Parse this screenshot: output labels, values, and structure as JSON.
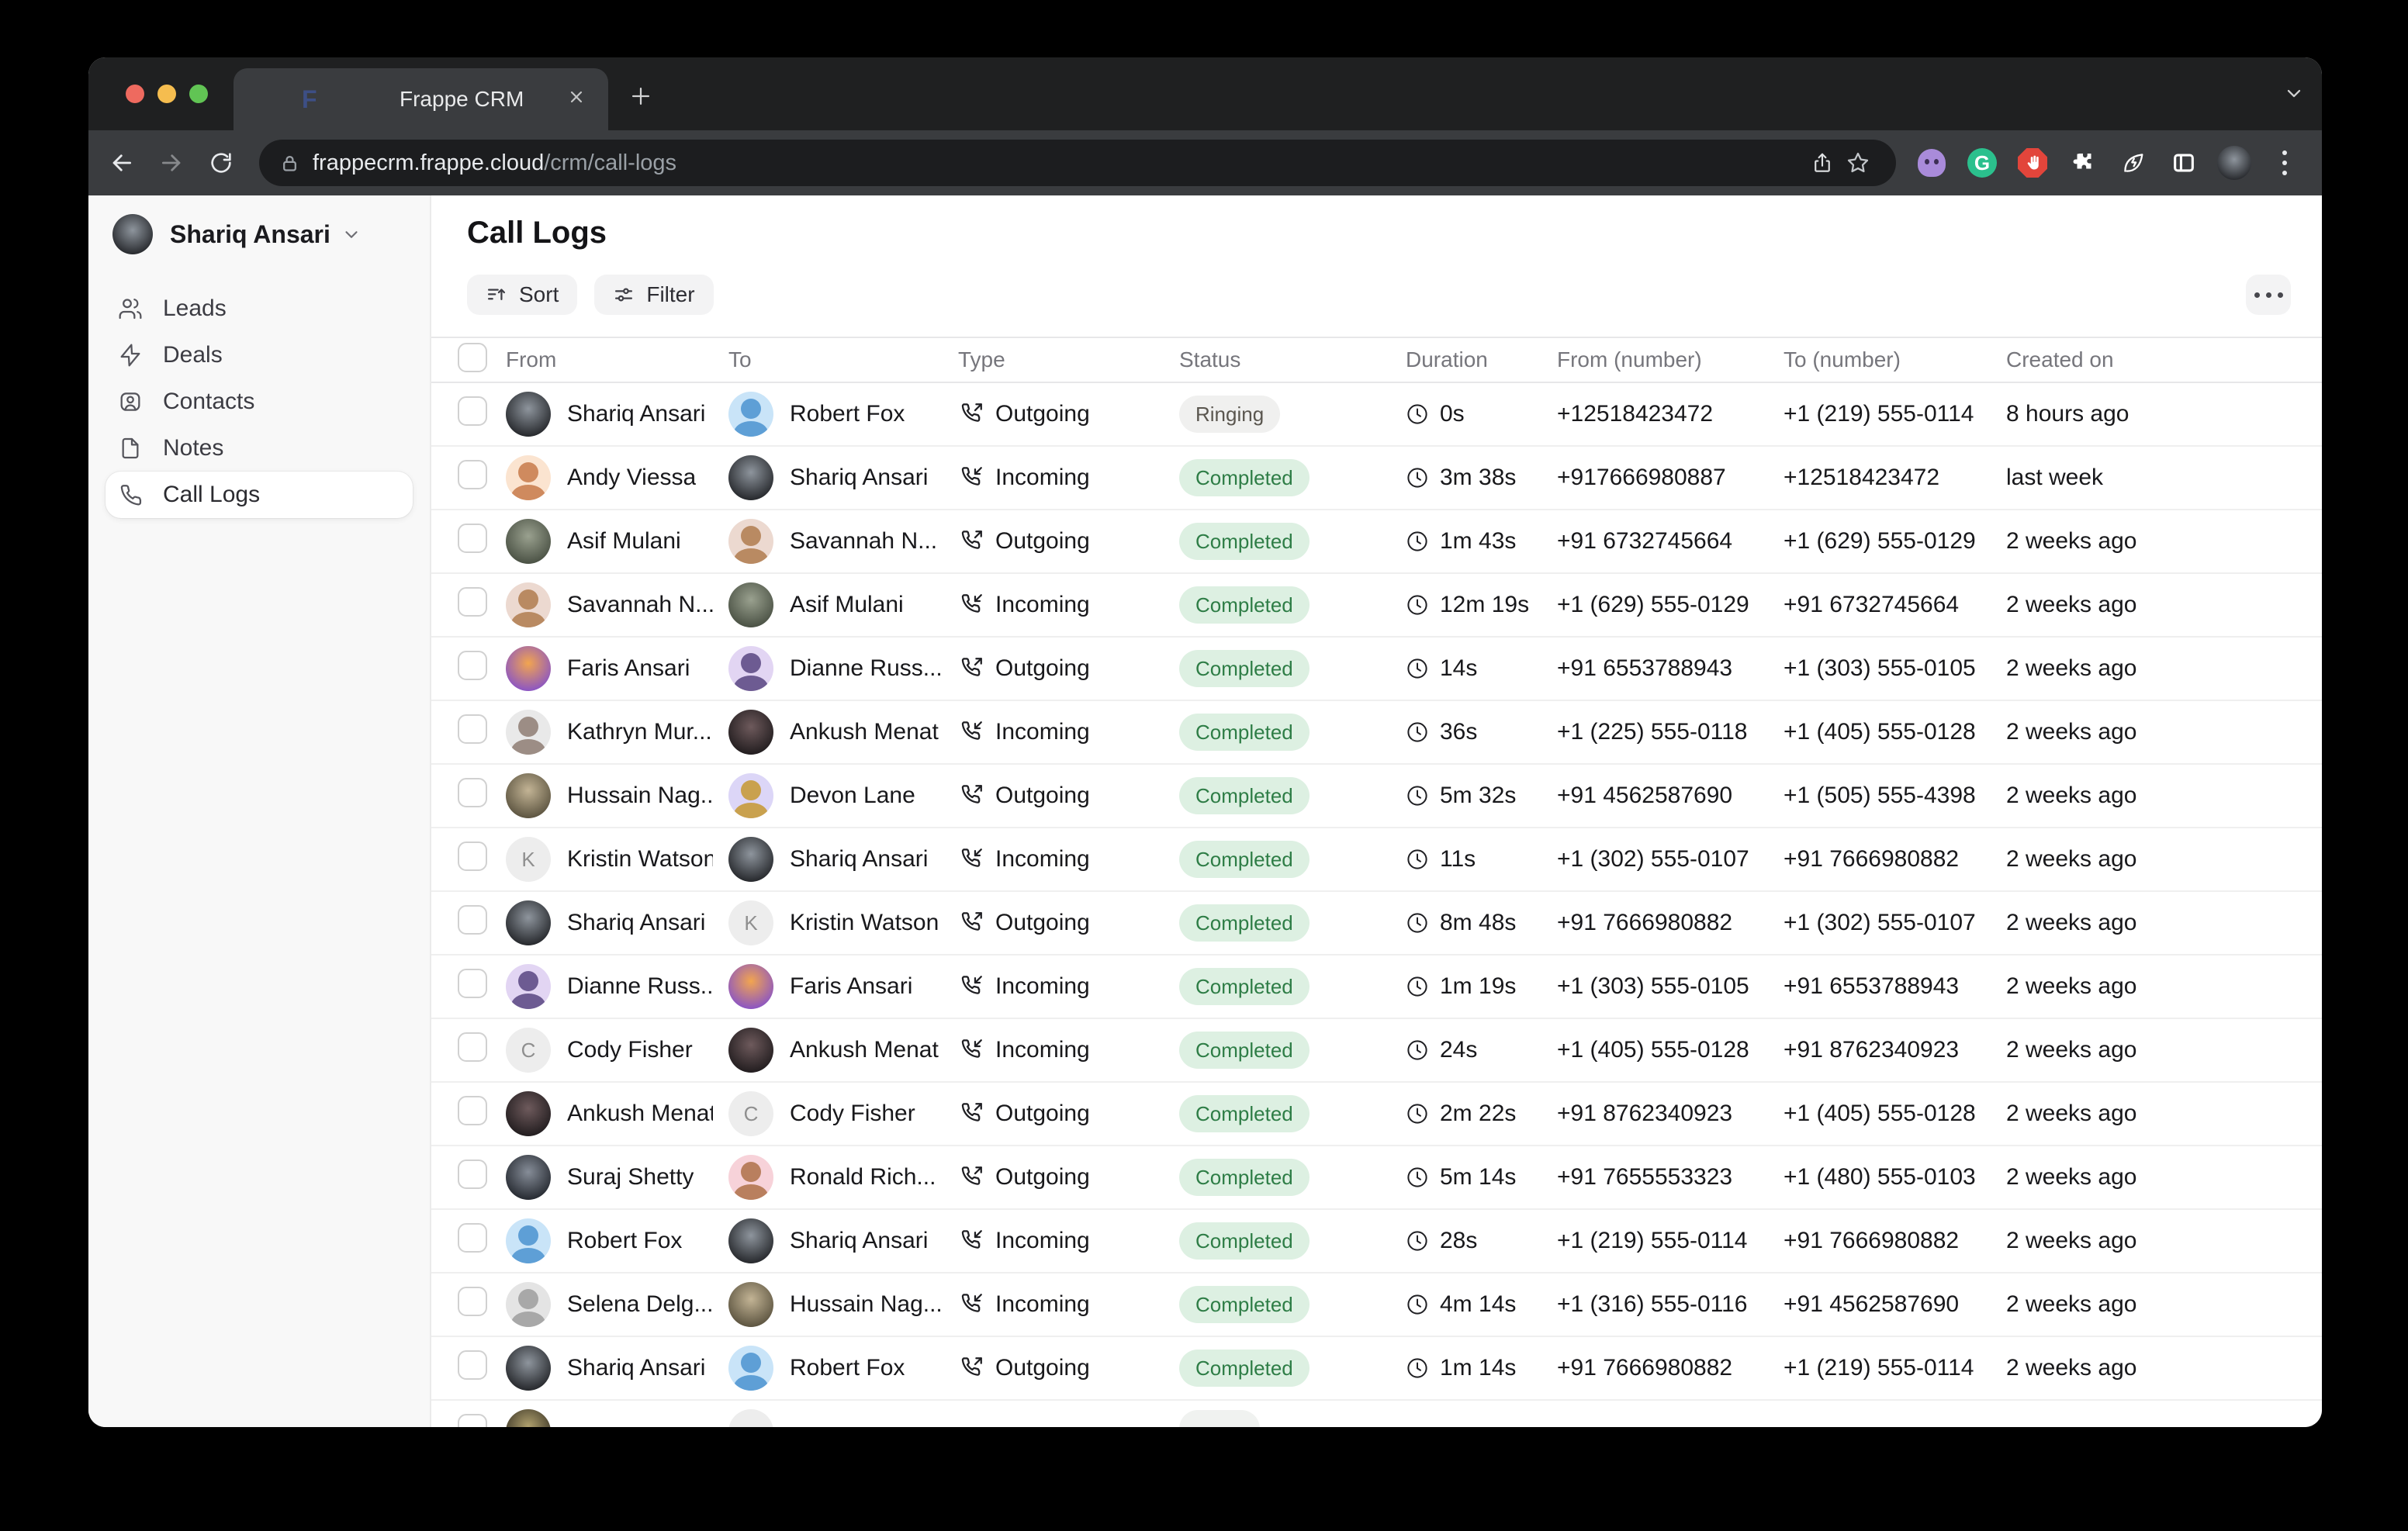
{
  "browser": {
    "traffic_lights": [
      "#ee6a5f",
      "#f5bd4f",
      "#61c454"
    ],
    "tab": {
      "title": "Frappe CRM",
      "favicon_letter": "F"
    },
    "address": {
      "host": "frappecrm.frappe.cloud",
      "path": "/crm/call-logs"
    },
    "extensions": [
      {
        "name": "github-extension",
        "kind": "octo"
      },
      {
        "name": "grammarly-extension",
        "kind": "g",
        "letter": "G"
      },
      {
        "name": "adblock-extension",
        "kind": "hand"
      },
      {
        "name": "extensions-puzzle",
        "kind": "puzzle"
      },
      {
        "name": "leaf-extension",
        "kind": "leaf"
      },
      {
        "name": "side-panel",
        "kind": "panel"
      },
      {
        "name": "profile-avatar",
        "kind": "avatar"
      },
      {
        "name": "browser-menu",
        "kind": "dots"
      }
    ]
  },
  "sidebar": {
    "user": {
      "name": "Shariq Ansari"
    },
    "items": [
      {
        "label": "Leads",
        "icon": "users",
        "active": false
      },
      {
        "label": "Deals",
        "icon": "zap",
        "active": false
      },
      {
        "label": "Contacts",
        "icon": "contact",
        "active": false
      },
      {
        "label": "Notes",
        "icon": "file",
        "active": false
      },
      {
        "label": "Call Logs",
        "icon": "phone",
        "active": true
      }
    ]
  },
  "page": {
    "title": "Call Logs",
    "sort_label": "Sort",
    "filter_label": "Filter"
  },
  "colors": {
    "completed_bg": "#ddf0e2",
    "completed_fg": "#2e7d46",
    "ringing_bg": "#f0f0ef",
    "ringing_fg": "#5a564f"
  },
  "table": {
    "columns": [
      "From",
      "To",
      "Type",
      "Status",
      "Duration",
      "From (number)",
      "To (number)",
      "Created on"
    ],
    "rows": [
      {
        "from": {
          "name": "Shariq Ansari",
          "avatar": {
            "kind": "photo",
            "c1": "#8e959d",
            "c2": "#26282c"
          }
        },
        "to": {
          "name": "Robert Fox",
          "avatar": {
            "kind": "memoji",
            "bg": "#c9e4f8",
            "tone": "#5e9fd6"
          }
        },
        "type": "Outgoing",
        "status": "Ringing",
        "status_kind": "ringing",
        "duration": "0s",
        "from_number": "+12518423472",
        "to_number": "+1 (219) 555-0114",
        "created": "8 hours ago"
      },
      {
        "from": {
          "name": "Andy Viessa",
          "avatar": {
            "kind": "memoji",
            "bg": "#fbe4d0",
            "tone": "#cf8a5e"
          }
        },
        "to": {
          "name": "Shariq Ansari",
          "avatar": {
            "kind": "photo",
            "c1": "#8e959d",
            "c2": "#26282c"
          }
        },
        "type": "Incoming",
        "status": "Completed",
        "status_kind": "completed",
        "duration": "3m 38s",
        "from_number": "+917666980887",
        "to_number": "+12518423472",
        "created": "last week"
      },
      {
        "from": {
          "name": "Asif Mulani",
          "avatar": {
            "kind": "photo",
            "c1": "#9aa18f",
            "c2": "#4a5144"
          }
        },
        "to": {
          "name": "Savannah N...",
          "avatar": {
            "kind": "memoji",
            "bg": "#ecd9d0",
            "tone": "#b98a62"
          }
        },
        "type": "Outgoing",
        "status": "Completed",
        "status_kind": "completed",
        "duration": "1m 43s",
        "from_number": "+91 6732745664",
        "to_number": "+1 (629) 555-0129",
        "created": "2 weeks ago"
      },
      {
        "from": {
          "name": "Savannah N...",
          "avatar": {
            "kind": "memoji",
            "bg": "#ecd9d0",
            "tone": "#b98a62"
          }
        },
        "to": {
          "name": "Asif Mulani",
          "avatar": {
            "kind": "photo",
            "c1": "#9aa18f",
            "c2": "#4a5144"
          }
        },
        "type": "Incoming",
        "status": "Completed",
        "status_kind": "completed",
        "duration": "12m 19s",
        "from_number": "+1 (629) 555-0129",
        "to_number": "+91 6732745664",
        "created": "2 weeks ago"
      },
      {
        "from": {
          "name": "Faris Ansari",
          "avatar": {
            "kind": "photo",
            "c1": "#f2a54f",
            "c2": "#8b55c4"
          }
        },
        "to": {
          "name": "Dianne Russ...",
          "avatar": {
            "kind": "memoji",
            "bg": "#e2d5f3",
            "tone": "#6d5b92"
          }
        },
        "type": "Outgoing",
        "status": "Completed",
        "status_kind": "completed",
        "duration": "14s",
        "from_number": "+91 6553788943",
        "to_number": "+1 (303) 555-0105",
        "created": "2 weeks ago"
      },
      {
        "from": {
          "name": "Kathryn Mur...",
          "avatar": {
            "kind": "memoji",
            "bg": "#e9e9e9",
            "tone": "#9c8d85"
          }
        },
        "to": {
          "name": "Ankush Menat",
          "avatar": {
            "kind": "photo",
            "c1": "#6e5a5c",
            "c2": "#221d1f"
          }
        },
        "type": "Incoming",
        "status": "Completed",
        "status_kind": "completed",
        "duration": "36s",
        "from_number": "+1 (225) 555-0118",
        "to_number": "+1 (405) 555-0128",
        "created": "2 weeks ago"
      },
      {
        "from": {
          "name": "Hussain Nag...",
          "avatar": {
            "kind": "photo",
            "c1": "#c3b495",
            "c2": "#5c5440"
          }
        },
        "to": {
          "name": "Devon Lane",
          "avatar": {
            "kind": "memoji",
            "bg": "#dcd6f7",
            "tone": "#c9a14e"
          }
        },
        "type": "Outgoing",
        "status": "Completed",
        "status_kind": "completed",
        "duration": "5m 32s",
        "from_number": "+91 4562587690",
        "to_number": "+1 (505) 555-4398",
        "created": "2 weeks ago"
      },
      {
        "from": {
          "name": "Kristin Watson",
          "avatar": {
            "kind": "letter",
            "bg": "#ededed",
            "fg": "#8f8f8f",
            "initial": "K"
          }
        },
        "to": {
          "name": "Shariq Ansari",
          "avatar": {
            "kind": "photo",
            "c1": "#8e959d",
            "c2": "#26282c"
          }
        },
        "type": "Incoming",
        "status": "Completed",
        "status_kind": "completed",
        "duration": "11s",
        "from_number": "+1 (302) 555-0107",
        "to_number": "+91 7666980882",
        "created": "2 weeks ago"
      },
      {
        "from": {
          "name": "Shariq Ansari",
          "avatar": {
            "kind": "photo",
            "c1": "#8e959d",
            "c2": "#26282c"
          }
        },
        "to": {
          "name": "Kristin Watson",
          "avatar": {
            "kind": "letter",
            "bg": "#ededed",
            "fg": "#8f8f8f",
            "initial": "K"
          }
        },
        "type": "Outgoing",
        "status": "Completed",
        "status_kind": "completed",
        "duration": "8m 48s",
        "from_number": "+91 7666980882",
        "to_number": "+1 (302) 555-0107",
        "created": "2 weeks ago"
      },
      {
        "from": {
          "name": "Dianne Russ...",
          "avatar": {
            "kind": "memoji",
            "bg": "#e2d5f3",
            "tone": "#6d5b92"
          }
        },
        "to": {
          "name": "Faris Ansari",
          "avatar": {
            "kind": "photo",
            "c1": "#f2a54f",
            "c2": "#8b55c4"
          }
        },
        "type": "Incoming",
        "status": "Completed",
        "status_kind": "completed",
        "duration": "1m 19s",
        "from_number": "+1 (303) 555-0105",
        "to_number": "+91 6553788943",
        "created": "2 weeks ago"
      },
      {
        "from": {
          "name": "Cody Fisher",
          "avatar": {
            "kind": "letter",
            "bg": "#ededed",
            "fg": "#8f8f8f",
            "initial": "C"
          }
        },
        "to": {
          "name": "Ankush Menat",
          "avatar": {
            "kind": "photo",
            "c1": "#6e5a5c",
            "c2": "#221d1f"
          }
        },
        "type": "Incoming",
        "status": "Completed",
        "status_kind": "completed",
        "duration": "24s",
        "from_number": "+1 (405) 555-0128",
        "to_number": "+91 8762340923",
        "created": "2 weeks ago"
      },
      {
        "from": {
          "name": "Ankush Menat",
          "avatar": {
            "kind": "photo",
            "c1": "#6e5a5c",
            "c2": "#221d1f"
          }
        },
        "to": {
          "name": "Cody Fisher",
          "avatar": {
            "kind": "letter",
            "bg": "#ededed",
            "fg": "#8f8f8f",
            "initial": "C"
          }
        },
        "type": "Outgoing",
        "status": "Completed",
        "status_kind": "completed",
        "duration": "2m 22s",
        "from_number": "+91 8762340923",
        "to_number": "+1 (405) 555-0128",
        "created": "2 weeks ago"
      },
      {
        "from": {
          "name": "Suraj Shetty",
          "avatar": {
            "kind": "photo",
            "c1": "#868d98",
            "c2": "#262a31"
          }
        },
        "to": {
          "name": "Ronald Rich...",
          "avatar": {
            "kind": "memoji",
            "bg": "#f7d2d9",
            "tone": "#b97f5e"
          }
        },
        "type": "Outgoing",
        "status": "Completed",
        "status_kind": "completed",
        "duration": "5m 14s",
        "from_number": "+91 7655553323",
        "to_number": "+1 (480) 555-0103",
        "created": "2 weeks ago"
      },
      {
        "from": {
          "name": "Robert Fox",
          "avatar": {
            "kind": "memoji",
            "bg": "#c9e4f8",
            "tone": "#5e9fd6"
          }
        },
        "to": {
          "name": "Shariq Ansari",
          "avatar": {
            "kind": "photo",
            "c1": "#8e959d",
            "c2": "#26282c"
          }
        },
        "type": "Incoming",
        "status": "Completed",
        "status_kind": "completed",
        "duration": "28s",
        "from_number": "+1 (219) 555-0114",
        "to_number": "+91 7666980882",
        "created": "2 weeks ago"
      },
      {
        "from": {
          "name": "Selena Delg...",
          "avatar": {
            "kind": "memoji",
            "bg": "#e4e4e4",
            "tone": "#a8a8a8"
          }
        },
        "to": {
          "name": "Hussain Nag...",
          "avatar": {
            "kind": "photo",
            "c1": "#c3b495",
            "c2": "#5c5440"
          }
        },
        "type": "Incoming",
        "status": "Completed",
        "status_kind": "completed",
        "duration": "4m 14s",
        "from_number": "+1 (316) 555-0116",
        "to_number": "+91 4562587690",
        "created": "2 weeks ago"
      },
      {
        "from": {
          "name": "Shariq Ansari",
          "avatar": {
            "kind": "photo",
            "c1": "#8e959d",
            "c2": "#26282c"
          }
        },
        "to": {
          "name": "Robert Fox",
          "avatar": {
            "kind": "memoji",
            "bg": "#c9e4f8",
            "tone": "#5e9fd6"
          }
        },
        "type": "Outgoing",
        "status": "Completed",
        "status_kind": "completed",
        "duration": "1m 14s",
        "from_number": "+91 7666980882",
        "to_number": "+1 (219) 555-0114",
        "created": "2 weeks ago"
      }
    ],
    "partial_row": {
      "from_avatar": {
        "kind": "photo",
        "c1": "#b0a16e",
        "c2": "#3a3426"
      },
      "to_avatar": {
        "kind": "letter",
        "bg": "#ededed",
        "fg": "#8f8f8f",
        "initial": ""
      },
      "badge_color": "#f0f2f0"
    }
  }
}
